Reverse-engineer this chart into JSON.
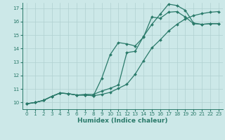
{
  "title": "",
  "xlabel": "Humidex (Indice chaleur)",
  "bg_color": "#cce8e8",
  "grid_color": "#b0d0d0",
  "line_color": "#2a7a6a",
  "xlim": [
    -0.5,
    23.5
  ],
  "ylim": [
    9.5,
    17.4
  ],
  "xticks": [
    0,
    1,
    2,
    3,
    4,
    5,
    6,
    7,
    8,
    9,
    10,
    11,
    12,
    13,
    14,
    15,
    16,
    17,
    18,
    19,
    20,
    21,
    22,
    23
  ],
  "yticks": [
    10,
    11,
    12,
    13,
    14,
    15,
    16,
    17
  ],
  "line1_x": [
    0,
    1,
    2,
    3,
    4,
    5,
    6,
    7,
    8,
    9,
    10,
    11,
    12,
    13,
    14,
    15,
    16,
    17,
    18,
    19,
    20,
    21,
    22,
    23
  ],
  "line1_y": [
    9.9,
    10.0,
    10.15,
    10.45,
    10.7,
    10.65,
    10.55,
    10.55,
    10.5,
    11.8,
    13.55,
    14.45,
    14.35,
    14.2,
    14.85,
    16.35,
    16.25,
    16.7,
    16.75,
    16.35,
    15.85,
    15.8,
    15.85,
    15.85
  ],
  "line2_x": [
    0,
    1,
    2,
    3,
    4,
    5,
    6,
    7,
    8,
    9,
    10,
    11,
    12,
    13,
    14,
    15,
    16,
    17,
    18,
    19,
    20,
    21,
    22,
    23
  ],
  "line2_y": [
    9.9,
    10.0,
    10.15,
    10.45,
    10.7,
    10.65,
    10.55,
    10.6,
    10.6,
    10.85,
    11.05,
    11.3,
    13.7,
    13.8,
    14.9,
    15.8,
    16.55,
    17.3,
    17.2,
    16.85,
    15.9,
    15.8,
    15.85,
    15.85
  ],
  "line3_x": [
    0,
    1,
    2,
    3,
    4,
    5,
    6,
    7,
    8,
    9,
    10,
    11,
    12,
    13,
    14,
    15,
    16,
    17,
    18,
    19,
    20,
    21,
    22,
    23
  ],
  "line3_y": [
    9.9,
    10.0,
    10.15,
    10.45,
    10.7,
    10.65,
    10.55,
    10.55,
    10.5,
    10.6,
    10.75,
    11.05,
    11.35,
    12.1,
    13.1,
    14.05,
    14.65,
    15.3,
    15.8,
    16.2,
    16.45,
    16.6,
    16.7,
    16.75
  ],
  "marker": "D",
  "markersize": 2.0,
  "linewidth": 0.9,
  "xlabel_fontsize": 6.5,
  "tick_fontsize": 5.2
}
